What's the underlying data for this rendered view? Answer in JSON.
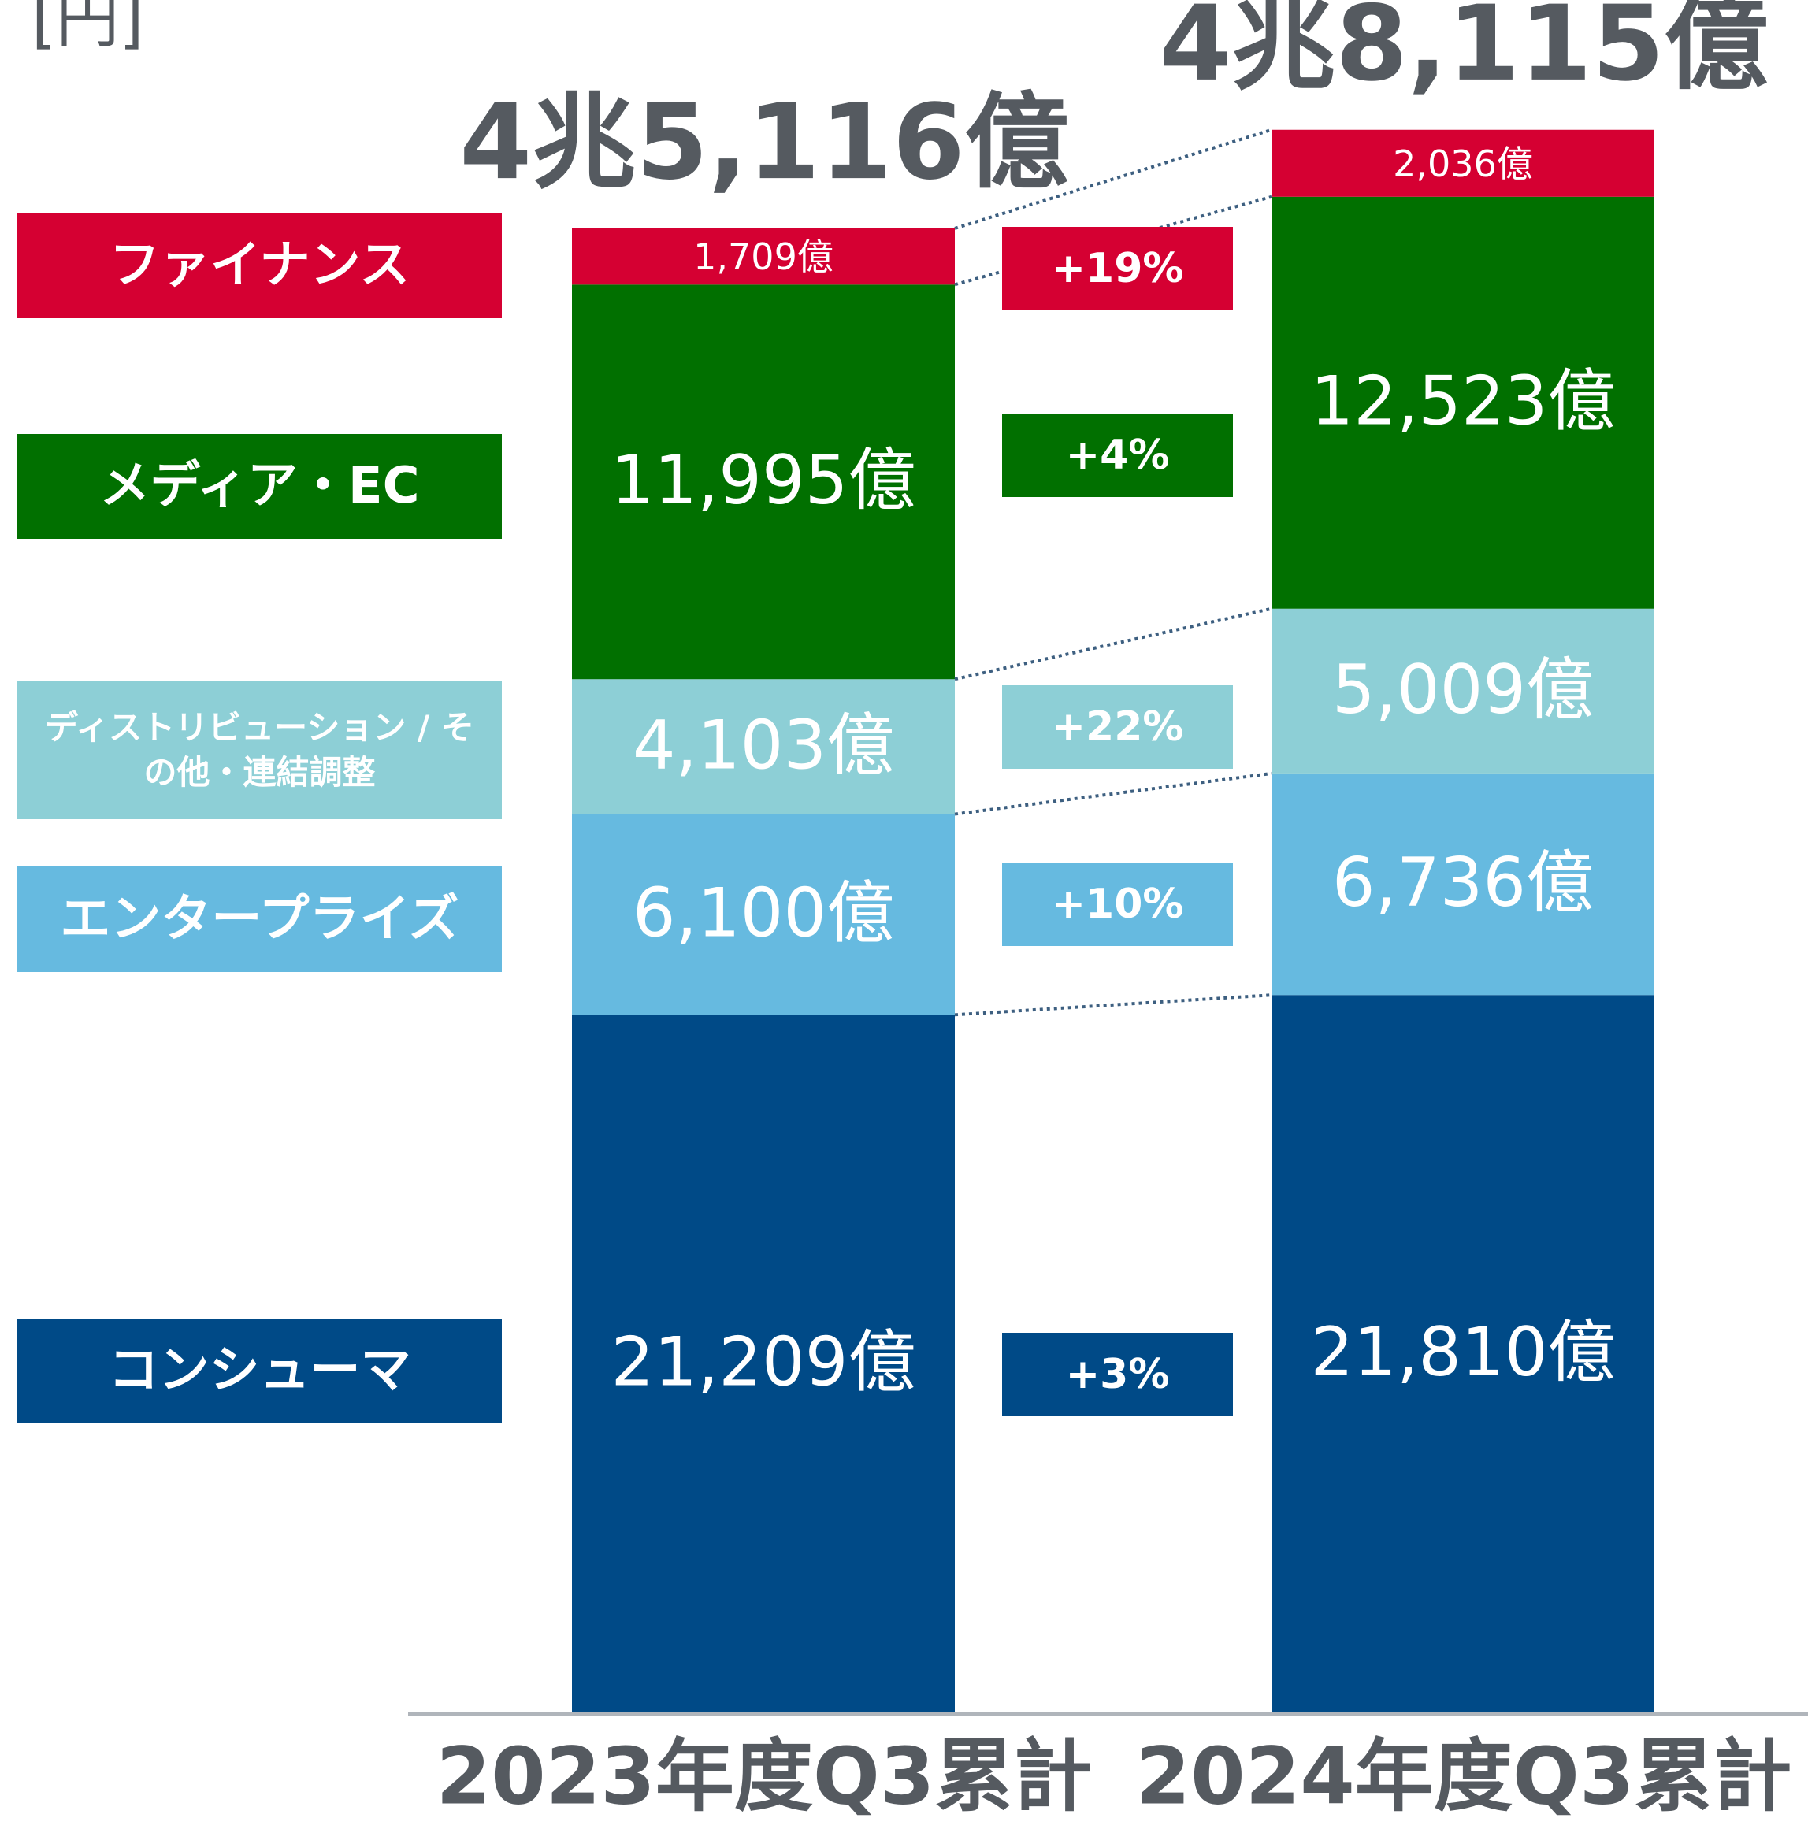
{
  "chart_data": {
    "type": "stacked_bar",
    "unit_label": "[円]",
    "categories": [
      "2023年度Q3累計",
      "2024年度Q3累計"
    ],
    "ylim": [
      0,
      50000
    ],
    "series": [
      {
        "name": "コンシューマ",
        "color": "#004a87",
        "values": [
          21209,
          21810
        ],
        "value_labels": [
          "21,209億",
          "21,810億"
        ]
      },
      {
        "name": "エンタープライズ",
        "color": "#66bae0",
        "values": [
          6100,
          6736
        ],
        "value_labels": [
          "6,100億",
          "6,736億"
        ]
      },
      {
        "name": "ディストリビューション / その他・連結調整",
        "color": "#8dcfd6",
        "values": [
          4103,
          5009
        ],
        "value_labels": [
          "4,103億",
          "5,009億"
        ]
      },
      {
        "name": "メディア・EC",
        "color": "#017000",
        "values": [
          11995,
          12523
        ],
        "value_labels": [
          "11,995億",
          "12,523億"
        ]
      },
      {
        "name": "ファイナンス",
        "color": "#d50032",
        "values": [
          1709,
          2036
        ],
        "value_labels": [
          "1,709億",
          "2,036億"
        ]
      }
    ],
    "totals": {
      "values": [
        45116,
        48115
      ],
      "value_labels": [
        "4兆5,116億",
        "4兆8,115億"
      ]
    },
    "growth": {
      "values": [
        3,
        10,
        22,
        4,
        19
      ],
      "value_labels": [
        "+3%",
        "+10%",
        "+22%",
        "+4%",
        "+19%"
      ]
    }
  }
}
